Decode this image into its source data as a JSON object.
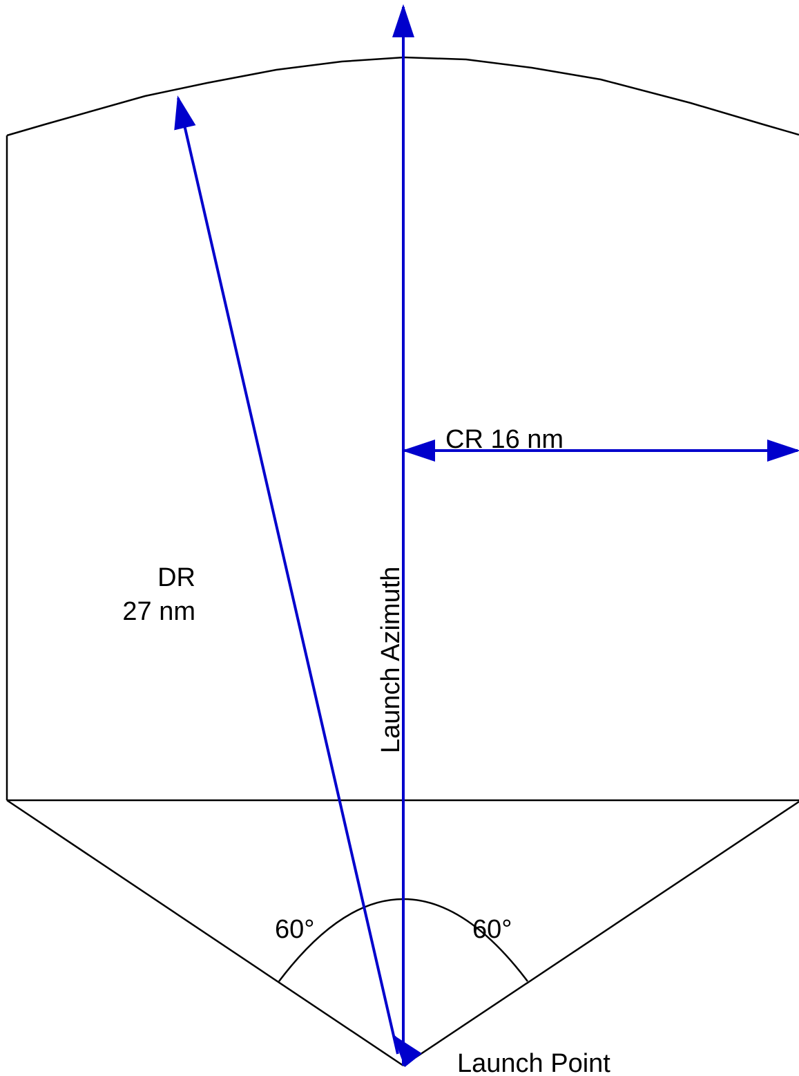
{
  "labels": {
    "cross_range": "CR 16 nm",
    "down_range_title": "DR",
    "down_range_value": "27 nm",
    "launch_azimuth": "Launch Azimuth",
    "left_angle": "60°",
    "right_angle": "60°",
    "launch_point": "Launch Point"
  },
  "colors": {
    "outline": "#000000",
    "vectors": "#0000CC",
    "background": "#FFFFFF"
  }
}
